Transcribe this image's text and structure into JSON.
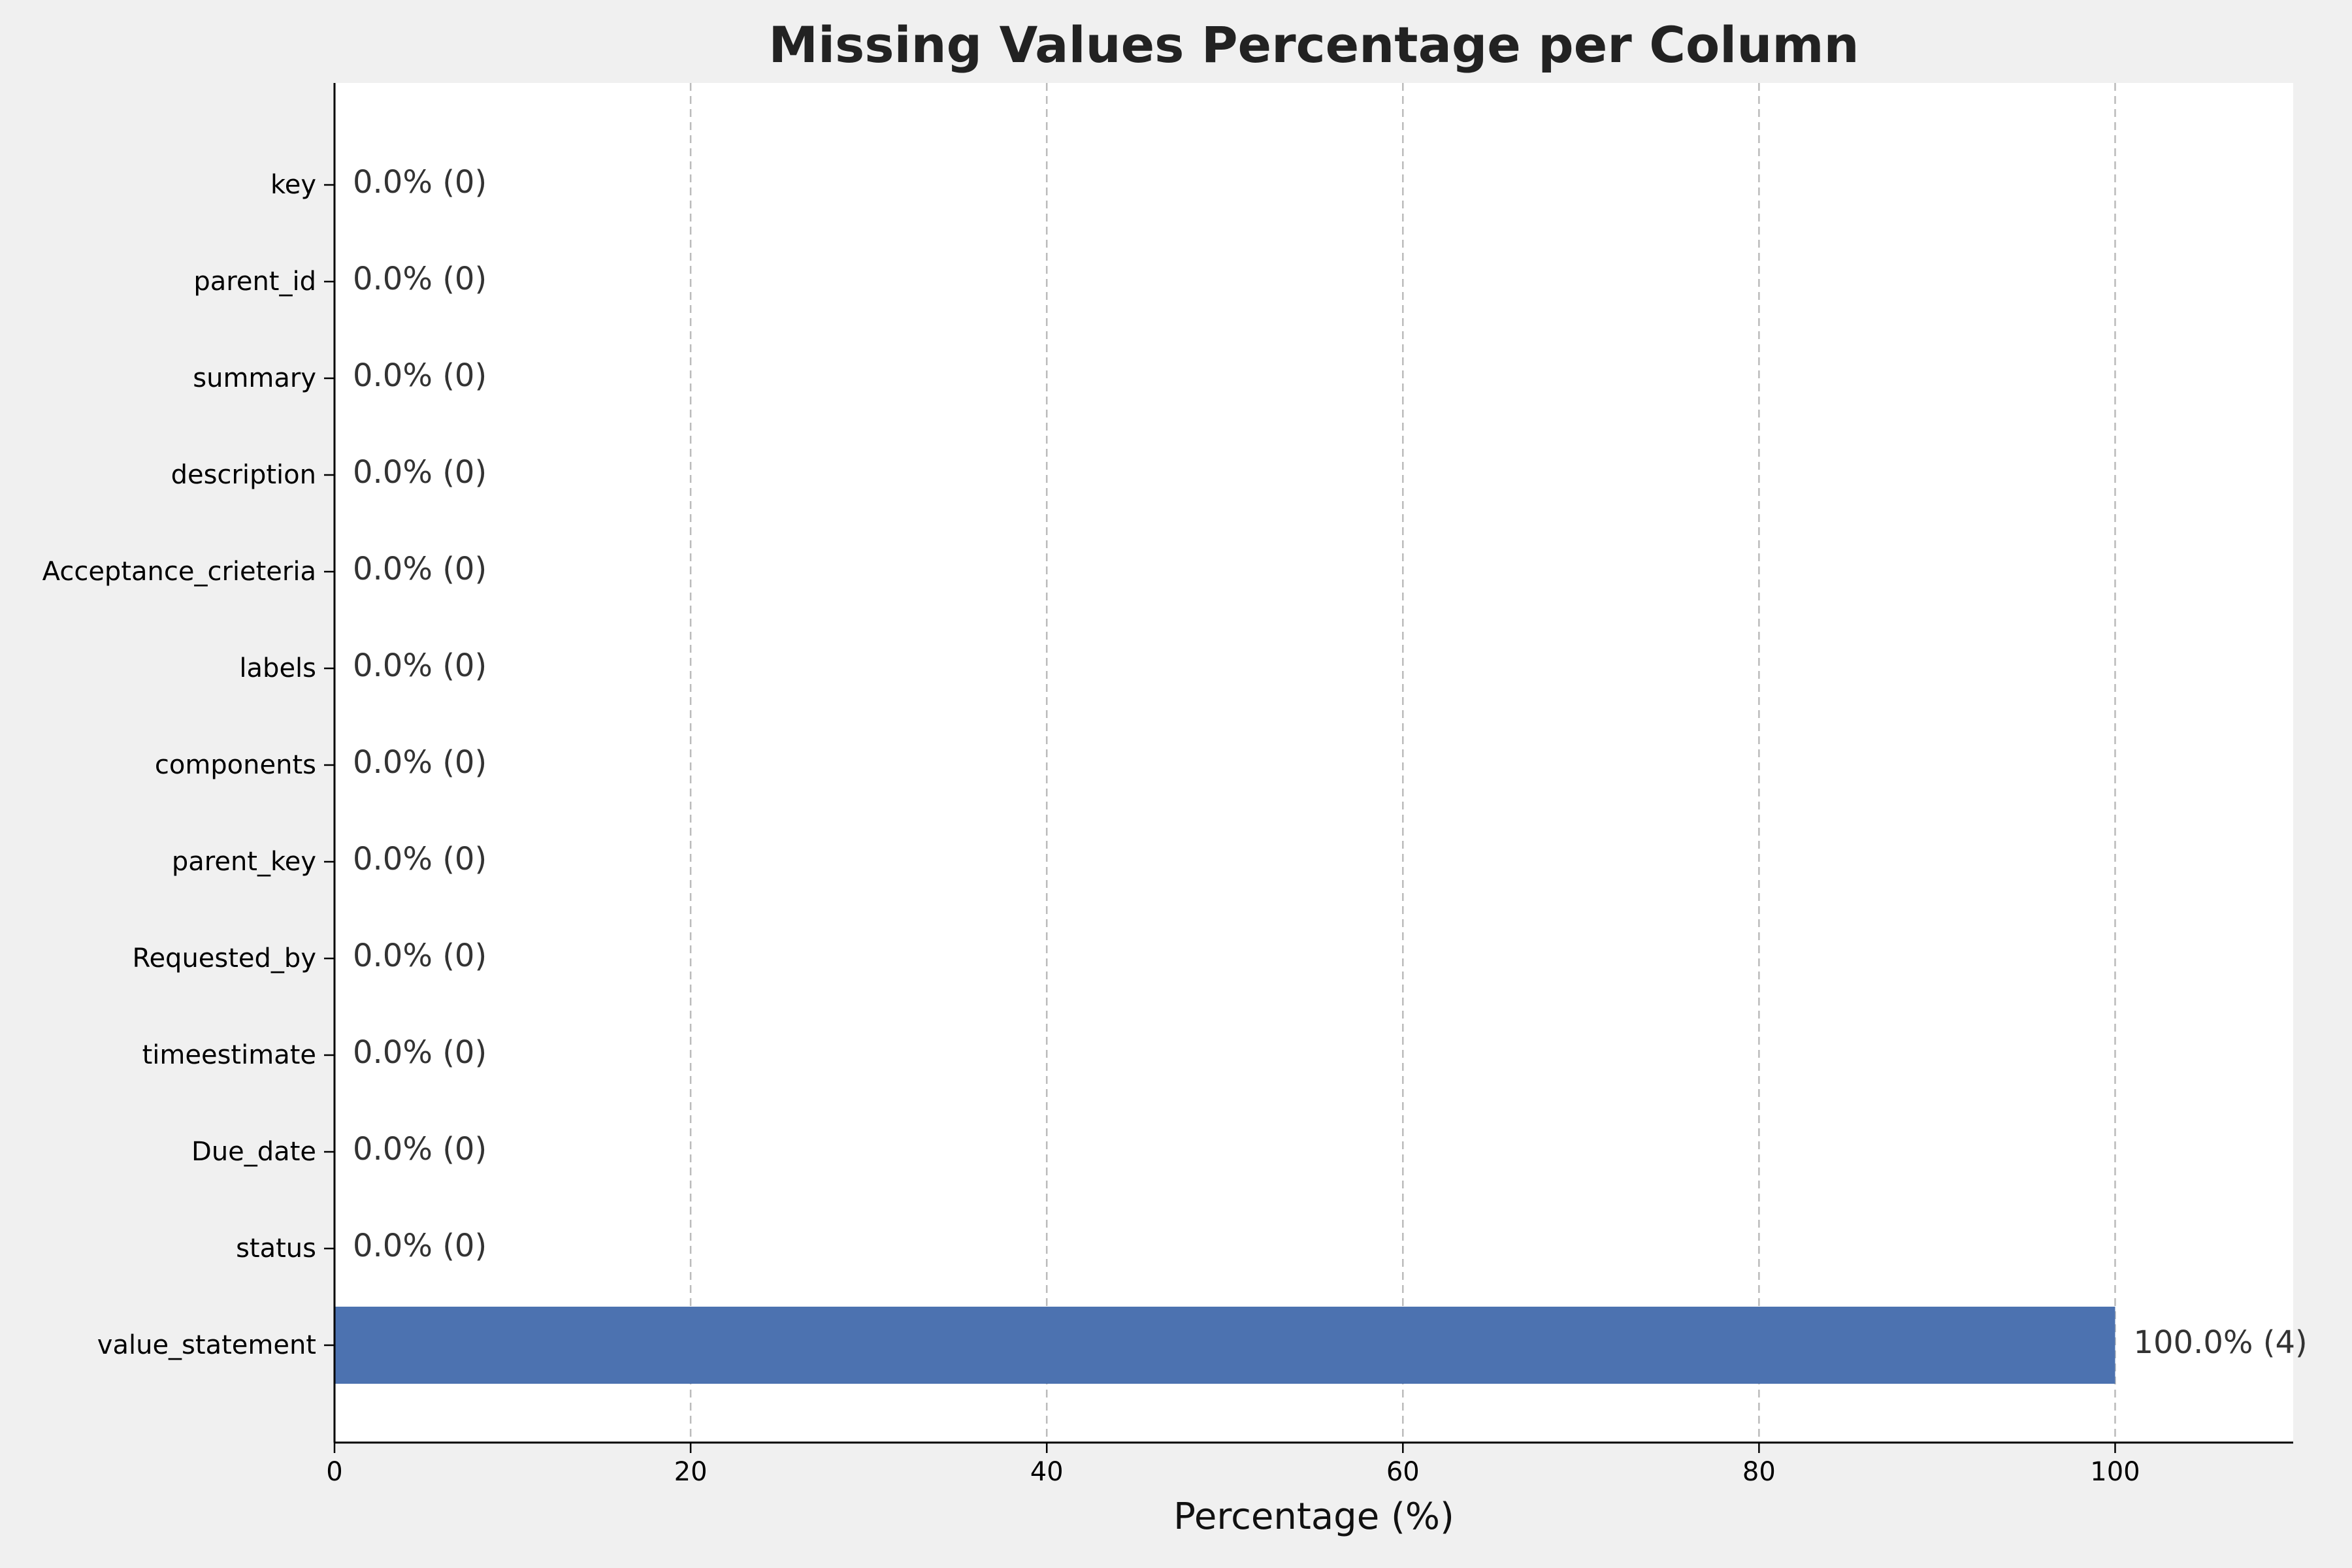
{
  "chart_data": {
    "type": "bar",
    "orientation": "horizontal",
    "title": "Missing Values Percentage per Column",
    "xlabel": "Percentage (%)",
    "ylabel": "",
    "xlim": [
      0,
      110
    ],
    "xticks": [
      0,
      20,
      40,
      60,
      80,
      100
    ],
    "grid": "x-dashed",
    "categories": [
      "key",
      "parent_id",
      "summary",
      "description",
      "Acceptance_crieteria",
      "labels",
      "components",
      "parent_key",
      "Requested_by",
      "timeestimate",
      "Due_date",
      "status",
      "value_statement"
    ],
    "values": [
      0,
      0,
      0,
      0,
      0,
      0,
      0,
      0,
      0,
      0,
      0,
      0,
      100
    ],
    "data_labels": [
      "0.0% (0)",
      "0.0% (0)",
      "0.0% (0)",
      "0.0% (0)",
      "0.0% (0)",
      "0.0% (0)",
      "0.0% (0)",
      "0.0% (0)",
      "0.0% (0)",
      "0.0% (0)",
      "0.0% (0)",
      "0.0% (0)",
      "100.0% (4)"
    ],
    "bar_color": "#4c72b0",
    "background_color": "#f0f0f0",
    "plot_background_color": "#ffffff"
  }
}
